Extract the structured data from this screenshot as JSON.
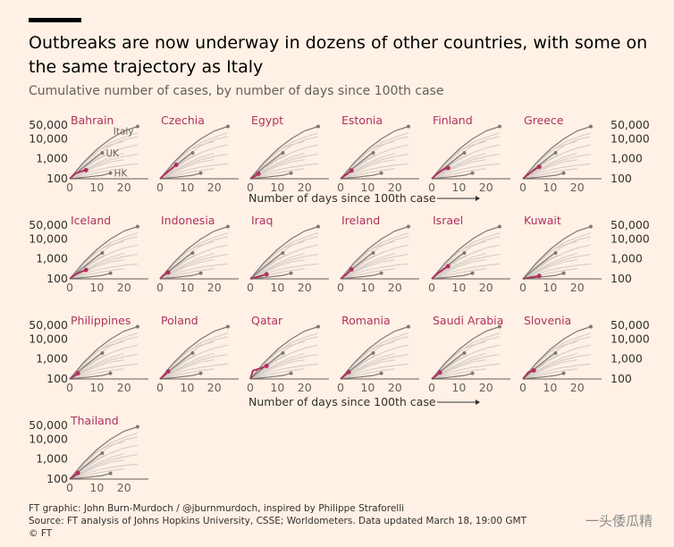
{
  "header": {
    "title": "Outbreaks are now underway in dozens of other countries, with some on the same trajectory as Italy",
    "subtitle": "Cumulative number of cases, by number of days since 100th case"
  },
  "footer": {
    "line1": "FT graphic: John Burn-Murdoch / @jburnmurdoch, inspired by Philippe Straforelli",
    "line2": "Source: FT analysis of Johns Hopkins University, CSSE; Worldometers. Data updated March 18, 19:00 GMT",
    "line3": "© FT"
  },
  "watermark": "一头倭瓜精",
  "colors": {
    "highlight": "#b0315e",
    "reference": "#807973",
    "background_lines": "#d4cdc7",
    "background": "#fff1e5"
  },
  "chart_data": {
    "type": "line",
    "xlabel": "Number of days since 100th case",
    "y_scale": "log",
    "ylim": [
      100,
      60000
    ],
    "xlim": [
      0,
      27
    ],
    "y_ticks": [
      "100",
      "1,000",
      "10,000",
      "50,000"
    ],
    "x_ticks": [
      "0",
      "10",
      "20"
    ],
    "reference_labels": {
      "italy": "Italy",
      "uk": "UK",
      "hk": "HK"
    },
    "reference_series": {
      "italy": [
        [
          0,
          100
        ],
        [
          5,
          650
        ],
        [
          10,
          3000
        ],
        [
          15,
          10000
        ],
        [
          20,
          25000
        ],
        [
          25,
          42000
        ]
      ],
      "uk": [
        [
          0,
          100
        ],
        [
          5,
          380
        ],
        [
          10,
          1300
        ],
        [
          12,
          2000
        ]
      ],
      "hk": [
        [
          0,
          100
        ],
        [
          6,
          120
        ],
        [
          12,
          150
        ],
        [
          15,
          192
        ]
      ]
    },
    "panels": [
      {
        "country": "Bahrain",
        "series": [
          [
            0,
            100
          ],
          [
            2,
            180
          ],
          [
            4,
            230
          ],
          [
            6,
            270
          ]
        ]
      },
      {
        "country": "Czechia",
        "series": [
          [
            0,
            100
          ],
          [
            2,
            180
          ],
          [
            4,
            300
          ],
          [
            6,
            500
          ]
        ]
      },
      {
        "country": "Egypt",
        "series": [
          [
            0,
            100
          ],
          [
            2,
            140
          ],
          [
            3,
            180
          ]
        ]
      },
      {
        "country": "Estonia",
        "series": [
          [
            0,
            100
          ],
          [
            2,
            160
          ],
          [
            4,
            260
          ]
        ]
      },
      {
        "country": "Finland",
        "series": [
          [
            0,
            100
          ],
          [
            2,
            180
          ],
          [
            4,
            280
          ],
          [
            6,
            350
          ]
        ]
      },
      {
        "country": "Greece",
        "series": [
          [
            0,
            100
          ],
          [
            2,
            170
          ],
          [
            4,
            270
          ],
          [
            6,
            400
          ]
        ]
      },
      {
        "country": "Iceland",
        "series": [
          [
            0,
            100
          ],
          [
            2,
            160
          ],
          [
            4,
            220
          ],
          [
            6,
            280
          ]
        ]
      },
      {
        "country": "Indonesia",
        "series": [
          [
            0,
            100
          ],
          [
            1,
            140
          ],
          [
            3,
            210
          ]
        ]
      },
      {
        "country": "Iraq",
        "series": [
          [
            0,
            100
          ],
          [
            3,
            130
          ],
          [
            6,
            170
          ]
        ]
      },
      {
        "country": "Ireland",
        "series": [
          [
            0,
            100
          ],
          [
            2,
            160
          ],
          [
            4,
            300
          ]
        ]
      },
      {
        "country": "Israel",
        "series": [
          [
            0,
            100
          ],
          [
            2,
            180
          ],
          [
            4,
            280
          ],
          [
            6,
            430
          ]
        ]
      },
      {
        "country": "Kuwait",
        "series": [
          [
            0,
            100
          ],
          [
            3,
            120
          ],
          [
            6,
            140
          ]
        ]
      },
      {
        "country": "Philippines",
        "series": [
          [
            0,
            100
          ],
          [
            2,
            150
          ],
          [
            3,
            190
          ]
        ]
      },
      {
        "country": "Poland",
        "series": [
          [
            0,
            100
          ],
          [
            2,
            170
          ],
          [
            3,
            240
          ]
        ]
      },
      {
        "country": "Qatar",
        "series": [
          [
            0,
            100
          ],
          [
            1,
            260
          ],
          [
            4,
            350
          ],
          [
            6,
            450
          ]
        ]
      },
      {
        "country": "Romania",
        "series": [
          [
            0,
            100
          ],
          [
            2,
            170
          ],
          [
            3,
            220
          ]
        ]
      },
      {
        "country": "Saudi Arabia",
        "series": [
          [
            0,
            100
          ],
          [
            2,
            160
          ],
          [
            3,
            210
          ]
        ]
      },
      {
        "country": "Slovenia",
        "series": [
          [
            0,
            100
          ],
          [
            2,
            220
          ],
          [
            4,
            270
          ]
        ]
      },
      {
        "country": "Thailand",
        "series": [
          [
            0,
            100
          ],
          [
            2,
            150
          ],
          [
            3,
            200
          ]
        ]
      }
    ],
    "background_series": [
      [
        [
          0,
          100
        ],
        [
          5,
          500
        ],
        [
          10,
          2200
        ],
        [
          15,
          6500
        ],
        [
          20,
          12000
        ],
        [
          25,
          20000
        ]
      ],
      [
        [
          0,
          100
        ],
        [
          5,
          400
        ],
        [
          10,
          1500
        ],
        [
          15,
          4500
        ],
        [
          20,
          9000
        ],
        [
          25,
          13000
        ]
      ],
      [
        [
          0,
          100
        ],
        [
          5,
          600
        ],
        [
          10,
          2500
        ],
        [
          15,
          5000
        ],
        [
          20,
          7500
        ]
      ],
      [
        [
          0,
          100
        ],
        [
          5,
          300
        ],
        [
          10,
          900
        ],
        [
          15,
          2000
        ],
        [
          20,
          3500
        ],
        [
          25,
          5000
        ]
      ],
      [
        [
          0,
          100
        ],
        [
          5,
          250
        ],
        [
          10,
          600
        ],
        [
          15,
          1200
        ],
        [
          20,
          1900
        ]
      ],
      [
        [
          0,
          100
        ],
        [
          5,
          350
        ],
        [
          10,
          1000
        ],
        [
          13,
          1600
        ]
      ],
      [
        [
          0,
          100
        ],
        [
          5,
          200
        ],
        [
          10,
          420
        ],
        [
          15,
          700
        ],
        [
          20,
          900
        ]
      ],
      [
        [
          0,
          100
        ],
        [
          5,
          230
        ],
        [
          10,
          500
        ],
        [
          15,
          900
        ],
        [
          20,
          1300
        ],
        [
          25,
          1700
        ]
      ],
      [
        [
          0,
          100
        ],
        [
          5,
          170
        ],
        [
          10,
          280
        ],
        [
          15,
          380
        ],
        [
          20,
          480
        ],
        [
          25,
          560
        ]
      ],
      [
        [
          0,
          100
        ],
        [
          5,
          140
        ],
        [
          10,
          200
        ],
        [
          15,
          260
        ],
        [
          20,
          320
        ]
      ]
    ]
  }
}
